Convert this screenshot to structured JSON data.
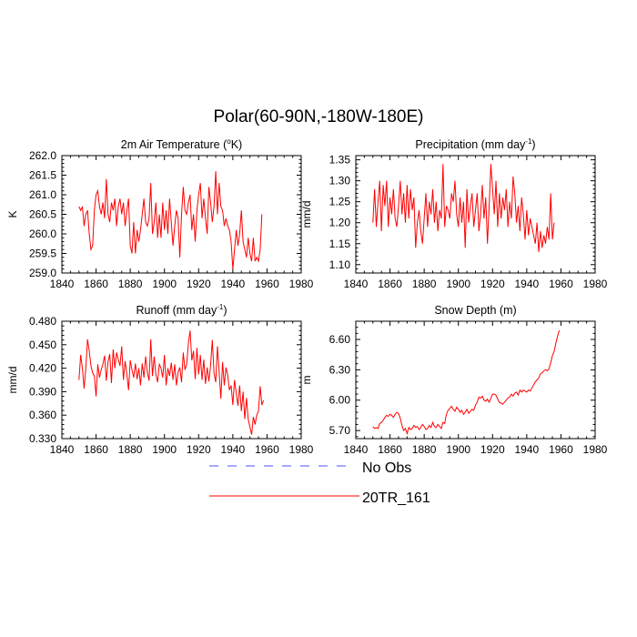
{
  "title": "Polar(60-90N,-180W-180E)",
  "colors": {
    "model": "#ff0000",
    "obs": "#4f4fff",
    "axis": "#000000"
  },
  "legend": [
    {
      "label": "No Obs",
      "style": "dashed",
      "color": "#4f4fff"
    },
    {
      "label": "20TR_161",
      "style": "solid",
      "color": "#ff0000"
    }
  ],
  "chart_data": [
    {
      "type": "line",
      "title_prefix": "2m Air Temperature (",
      "title_sup": "o",
      "title_suffix": "K)",
      "ylabel": "K",
      "xlim": [
        1840,
        1980
      ],
      "ylim": [
        259.0,
        262.0
      ],
      "xticks": [
        "1840",
        "1860",
        "1880",
        "1900",
        "1920",
        "1940",
        "1960",
        "1980"
      ],
      "yticks": [
        "259.0",
        "259.5",
        "260.0",
        "260.5",
        "261.0",
        "261.5",
        "262.0"
      ],
      "series": [
        {
          "name": "20TR_161",
          "x_start": 1850,
          "values": [
            260.7,
            260.6,
            260.7,
            260.2,
            260.5,
            260.6,
            260.0,
            259.6,
            259.7,
            260.6,
            261.0,
            261.1,
            260.7,
            260.5,
            260.8,
            260.4,
            261.4,
            260.5,
            260.3,
            260.8,
            260.6,
            260.9,
            260.2,
            260.7,
            260.9,
            260.5,
            260.8,
            260.2,
            260.6,
            260.9,
            259.7,
            259.5,
            260.3,
            259.5,
            260.1,
            259.8,
            260.1,
            260.5,
            260.9,
            260.3,
            260.2,
            260.4,
            261.3,
            260.0,
            260.3,
            260.8,
            259.9,
            260.5,
            259.9,
            260.8,
            260.1,
            260.6,
            260.0,
            260.9,
            260.3,
            259.7,
            260.2,
            260.6,
            260.4,
            259.4,
            260.5,
            261.2,
            260.6,
            260.5,
            260.8,
            261.0,
            260.1,
            260.5,
            259.8,
            260.6,
            261.0,
            261.3,
            260.4,
            260.9,
            260.4,
            260.0,
            261.2,
            260.8,
            260.3,
            260.7,
            261.6,
            260.5,
            261.3,
            260.7,
            260.6,
            260.2,
            260.4,
            260.2,
            260.1,
            259.8,
            259.1,
            259.6,
            260.1,
            259.7,
            260.0,
            260.6,
            259.8,
            259.6,
            259.4,
            259.9,
            259.5,
            259.3,
            259.9,
            259.3,
            259.4,
            259.3,
            259.6,
            260.5
          ]
        }
      ]
    },
    {
      "type": "line",
      "title_prefix": "Precipitation (mm day",
      "title_sup": "-1",
      "title_suffix": ")",
      "ylabel": "mm/d",
      "xlim": [
        1840,
        1980
      ],
      "ylim": [
        1.08,
        1.36
      ],
      "xticks": [
        "1840",
        "1860",
        "1880",
        "1900",
        "1920",
        "1940",
        "1960",
        "1980"
      ],
      "yticks": [
        "1.10",
        "1.15",
        "1.20",
        "1.25",
        "1.30",
        "1.35"
      ],
      "series": [
        {
          "name": "20TR_161",
          "x_start": 1850,
          "values": [
            1.2,
            1.28,
            1.19,
            1.25,
            1.3,
            1.18,
            1.29,
            1.24,
            1.3,
            1.19,
            1.26,
            1.22,
            1.28,
            1.21,
            1.19,
            1.24,
            1.3,
            1.22,
            1.27,
            1.2,
            1.29,
            1.21,
            1.28,
            1.23,
            1.26,
            1.14,
            1.2,
            1.23,
            1.18,
            1.15,
            1.21,
            1.27,
            1.19,
            1.25,
            1.22,
            1.28,
            1.2,
            1.25,
            1.18,
            1.23,
            1.21,
            1.34,
            1.19,
            1.24,
            1.23,
            1.21,
            1.27,
            1.25,
            1.3,
            1.22,
            1.19,
            1.26,
            1.2,
            1.25,
            1.14,
            1.28,
            1.2,
            1.24,
            1.27,
            1.19,
            1.23,
            1.27,
            1.18,
            1.22,
            1.29,
            1.21,
            1.26,
            1.15,
            1.24,
            1.34,
            1.28,
            1.22,
            1.3,
            1.19,
            1.27,
            1.21,
            1.26,
            1.23,
            1.28,
            1.19,
            1.25,
            1.21,
            1.31,
            1.27,
            1.2,
            1.24,
            1.18,
            1.26,
            1.22,
            1.16,
            1.23,
            1.17,
            1.21,
            1.19,
            1.17,
            1.15,
            1.2,
            1.13,
            1.18,
            1.14,
            1.17,
            1.15,
            1.19,
            1.16,
            1.27,
            1.16,
            1.2
          ]
        }
      ]
    },
    {
      "type": "line",
      "title_prefix": "Runoff (mm day",
      "title_sup": "-1",
      "title_suffix": ")",
      "ylabel": "mm/d",
      "xlim": [
        1840,
        1980
      ],
      "ylim": [
        0.33,
        0.48
      ],
      "xticks": [
        "1840",
        "1860",
        "1880",
        "1900",
        "1920",
        "1940",
        "1960",
        "1980"
      ],
      "yticks": [
        "0.330",
        "0.360",
        "0.390",
        "0.420",
        "0.450",
        "0.480"
      ],
      "series": [
        {
          "name": "20TR_161",
          "x_start": 1850,
          "values": [
            0.405,
            0.437,
            0.42,
            0.394,
            0.42,
            0.457,
            0.442,
            0.423,
            0.414,
            0.41,
            0.384,
            0.425,
            0.408,
            0.418,
            0.425,
            0.436,
            0.404,
            0.428,
            0.438,
            0.401,
            0.444,
            0.42,
            0.44,
            0.431,
            0.423,
            0.448,
            0.405,
            0.429,
            0.412,
            0.392,
            0.43,
            0.418,
            0.408,
            0.426,
            0.406,
            0.42,
            0.398,
            0.426,
            0.408,
            0.435,
            0.415,
            0.404,
            0.457,
            0.41,
            0.435,
            0.412,
            0.402,
            0.425,
            0.42,
            0.408,
            0.437,
            0.398,
            0.42,
            0.41,
            0.427,
            0.405,
            0.425,
            0.398,
            0.415,
            0.421,
            0.402,
            0.44,
            0.418,
            0.425,
            0.452,
            0.468,
            0.43,
            0.442,
            0.406,
            0.446,
            0.412,
            0.437,
            0.405,
            0.431,
            0.4,
            0.421,
            0.403,
            0.424,
            0.456,
            0.414,
            0.402,
            0.448,
            0.415,
            0.381,
            0.428,
            0.398,
            0.421,
            0.411,
            0.392,
            0.398,
            0.373,
            0.405,
            0.388,
            0.372,
            0.398,
            0.365,
            0.39,
            0.355,
            0.382,
            0.355,
            0.345,
            0.335,
            0.358,
            0.348,
            0.36,
            0.365,
            0.397,
            0.373,
            0.379
          ]
        }
      ]
    },
    {
      "type": "line",
      "title_prefix": "Snow Depth (m)",
      "title_sup": "",
      "title_suffix": "",
      "ylabel": "m",
      "xlim": [
        1840,
        1980
      ],
      "ylim": [
        5.62,
        6.78
      ],
      "xticks": [
        "1840",
        "1860",
        "1880",
        "1900",
        "1920",
        "1940",
        "1960",
        "1980"
      ],
      "yticks": [
        "5.70",
        "6.00",
        "6.30",
        "6.60"
      ],
      "series": [
        {
          "name": "20TR_161",
          "x_start": 1850,
          "values": [
            5.74,
            5.72,
            5.73,
            5.72,
            5.77,
            5.78,
            5.8,
            5.83,
            5.85,
            5.84,
            5.86,
            5.85,
            5.83,
            5.86,
            5.88,
            5.87,
            5.82,
            5.75,
            5.7,
            5.72,
            5.67,
            5.73,
            5.71,
            5.72,
            5.75,
            5.73,
            5.74,
            5.71,
            5.73,
            5.76,
            5.74,
            5.71,
            5.72,
            5.75,
            5.73,
            5.78,
            5.74,
            5.73,
            5.76,
            5.74,
            5.72,
            5.78,
            5.77,
            5.86,
            5.9,
            5.92,
            5.94,
            5.91,
            5.89,
            5.93,
            5.91,
            5.88,
            5.9,
            5.86,
            5.88,
            5.91,
            5.87,
            5.89,
            5.91,
            5.9,
            5.95,
            5.98,
            6.03,
            6.02,
            6.04,
            6.0,
            5.99,
            6.01,
            5.98,
            6.02,
            6.06,
            6.06,
            6.05,
            6.01,
            5.98,
            5.97,
            5.96,
            5.98,
            6.0,
            6.02,
            6.03,
            6.06,
            6.04,
            6.07,
            6.08,
            6.05,
            6.1,
            6.08,
            6.1,
            6.09,
            6.08,
            6.1,
            6.09,
            6.12,
            6.15,
            6.18,
            6.2,
            6.22,
            6.26,
            6.27,
            6.29,
            6.3,
            6.29,
            6.31,
            6.37,
            6.44,
            6.48,
            6.56,
            6.63,
            6.69
          ]
        }
      ]
    }
  ]
}
